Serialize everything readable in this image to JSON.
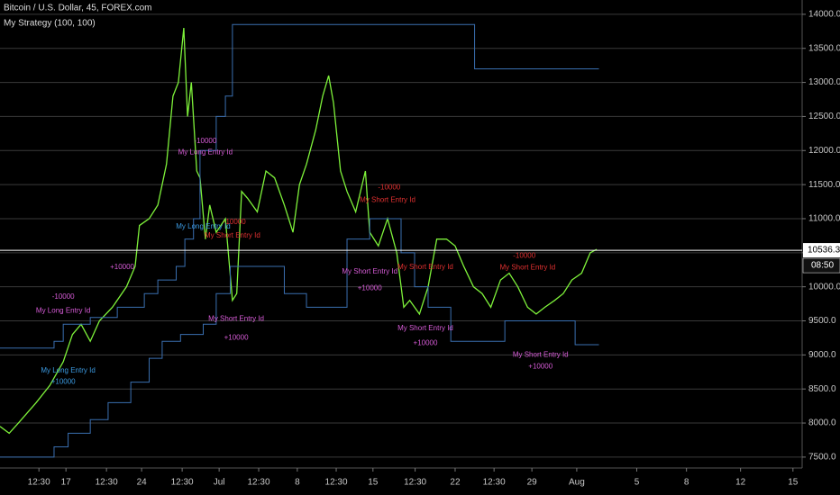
{
  "chart_data": {
    "type": "line",
    "title": "Bitcoin / U.S. Dollar, 45, FOREX.com",
    "subtitle": "My Strategy (100, 100)",
    "xlim": [
      10.9,
      85.1
    ],
    "xticks": [
      {
        "value": 14.5,
        "label": "12:30"
      },
      {
        "value": 17,
        "label": "17"
      },
      {
        "value": 20.75,
        "label": "12:30"
      },
      {
        "value": 24,
        "label": "24"
      },
      {
        "value": 27.75,
        "label": "12:30"
      },
      {
        "value": 31.17,
        "label": "Jul"
      },
      {
        "value": 34.83,
        "label": "12:30"
      },
      {
        "value": 38.4,
        "label": "8"
      },
      {
        "value": 42,
        "label": "12:30"
      },
      {
        "value": 45.4,
        "label": "15"
      },
      {
        "value": 49.3,
        "label": "12:30"
      },
      {
        "value": 53,
        "label": "22"
      },
      {
        "value": 56.6,
        "label": "12:30"
      },
      {
        "value": 60.1,
        "label": "29"
      },
      {
        "value": 64.25,
        "label": "Aug"
      },
      {
        "value": 69.8,
        "label": "5"
      },
      {
        "value": 74.4,
        "label": "8"
      },
      {
        "value": 79.4,
        "label": "12"
      },
      {
        "value": 84.25,
        "label": "15"
      }
    ],
    "ylim": [
      7340,
      14210
    ],
    "yticks": [
      {
        "value": 7500,
        "label": "7500.0"
      },
      {
        "value": 8000,
        "label": "8000.0"
      },
      {
        "value": 8500,
        "label": "8500.0"
      },
      {
        "value": 9000,
        "label": "9000.0"
      },
      {
        "value": 9500,
        "label": "9500.0"
      },
      {
        "value": 10000,
        "label": "10000.0"
      },
      {
        "value": 10500,
        "label": "10500.0"
      },
      {
        "value": 11000,
        "label": "11000.0"
      },
      {
        "value": 11500,
        "label": "11500.0"
      },
      {
        "value": 12000,
        "label": "12000.0"
      },
      {
        "value": 12500,
        "label": "12500.0"
      },
      {
        "value": 13000,
        "label": "13000.0"
      },
      {
        "value": 13500,
        "label": "13500.0"
      },
      {
        "value": 14000,
        "label": "14000.0"
      }
    ],
    "grid": true,
    "series": [
      {
        "color": "#7ef23a",
        "x": [
          10.9,
          11.75,
          12.6,
          14.25,
          15.5,
          16.75,
          17.6,
          18.4,
          19.25,
          20.1,
          21.3,
          22.6,
          23.4,
          23.8,
          24.7,
          25.5,
          26.3,
          26.9,
          27.4,
          27.9,
          28.25,
          28.6,
          29.1,
          29.4,
          29.9,
          30.3,
          30.9,
          31.75,
          32.4,
          32.8,
          33.25,
          33.8,
          34.7,
          35.5,
          36.3,
          37.2,
          38,
          38.6,
          39.25,
          40.1,
          40.75,
          41.3,
          41.75,
          42.4,
          43,
          43.8,
          44.7,
          45.1,
          45.9,
          46.75,
          47.6,
          48.25,
          48.8,
          49.7,
          50.5,
          51.3,
          52.2,
          53,
          53.8,
          54.7,
          55.5,
          56.3,
          57.2,
          58,
          58.8,
          59.7,
          60.5,
          61.3,
          62.2,
          63,
          63.8,
          64.7,
          65.5,
          66.1
        ],
        "values": [
          7950,
          7850,
          8000,
          8300,
          8550,
          8900,
          9300,
          9450,
          9200,
          9500,
          9700,
          10000,
          10300,
          10900,
          11000,
          11200,
          11800,
          12800,
          13000,
          13800,
          12500,
          13000,
          11700,
          11600,
          10700,
          11200,
          10800,
          11000,
          9800,
          9900,
          11400,
          11300,
          11100,
          11700,
          11600,
          11200,
          10800,
          11500,
          11800,
          12300,
          12800,
          13100,
          12700,
          11700,
          11400,
          11100,
          11700,
          10800,
          10600,
          11000,
          10500,
          9700,
          9800,
          9600,
          10000,
          10700,
          10700,
          10600,
          10300,
          10000,
          9900,
          9700,
          10100,
          10200,
          10000,
          9700,
          9600,
          9700,
          9800,
          9900,
          10100,
          10200,
          10500,
          10550
        ]
      },
      {
        "color": "#3a6fb0",
        "step": true,
        "x": [
          10.9,
          15.9,
          16.75,
          19.25,
          21.75,
          24.25,
          25.5,
          27.2,
          28,
          28.8,
          29.4,
          30.9,
          31.75,
          32.4,
          54.8,
          66.3
        ],
        "values": [
          9100,
          9200,
          9450,
          9550,
          9700,
          9900,
          10100,
          10300,
          10700,
          11000,
          12000,
          12500,
          12800,
          13850,
          13200,
          13200
        ]
      },
      {
        "color": "#3a6fb0",
        "step": true,
        "x": [
          10.9,
          15.9,
          17.2,
          19.25,
          20.9,
          23,
          24.7,
          25.9,
          27.6,
          29.7,
          30.9,
          32.2,
          37.2,
          39.25,
          43,
          45.1,
          48,
          49.25,
          50.5,
          52.6,
          57.6,
          64.1,
          66.3
        ],
        "values": [
          7500,
          7650,
          7850,
          8050,
          8300,
          8600,
          8950,
          9200,
          9300,
          9450,
          9900,
          10300,
          9900,
          9700,
          10700,
          11000,
          10500,
          10000,
          9700,
          9200,
          9500,
          9150,
          9150
        ]
      }
    ],
    "annotations": [
      {
        "text": "-10000",
        "x": 16.75,
        "y": 9850,
        "color": "#d65bd6"
      },
      {
        "text": "My Long Entry Id",
        "x": 16.75,
        "y": 9650,
        "color": "#d65bd6"
      },
      {
        "text": "+10000",
        "x": 22.2,
        "y": 10290,
        "color": "#d65bd6"
      },
      {
        "text": "My Long Entry Id",
        "x": 17.2,
        "y": 8770,
        "color": "#3b9ae1"
      },
      {
        "text": "+10000",
        "x": 16.75,
        "y": 8600,
        "color": "#3b9ae1"
      },
      {
        "text": "-10000",
        "x": 29.9,
        "y": 12140,
        "color": "#d65bd6"
      },
      {
        "text": "My Long Entry Id",
        "x": 29.9,
        "y": 11970,
        "color": "#d65bd6"
      },
      {
        "text": "My Long Entry Id",
        "x": 29.7,
        "y": 10880,
        "color": "#3b9ae1"
      },
      {
        "text": "-10000",
        "x": 32.6,
        "y": 10950,
        "color": "#e03030"
      },
      {
        "text": "My Short Entry Id",
        "x": 32.4,
        "y": 10750,
        "color": "#e03030"
      },
      {
        "text": "My Short Entry Id",
        "x": 32.75,
        "y": 9530,
        "color": "#d65bd6"
      },
      {
        "text": "+10000",
        "x": 32.75,
        "y": 9250,
        "color": "#d65bd6"
      },
      {
        "text": "-10000",
        "x": 46.9,
        "y": 11460,
        "color": "#e03030"
      },
      {
        "text": "My Short Entry Id",
        "x": 46.75,
        "y": 11270,
        "color": "#e03030"
      },
      {
        "text": "My Short Entry Id",
        "x": 45.1,
        "y": 10220,
        "color": "#d65bd6"
      },
      {
        "text": "+10000",
        "x": 45.1,
        "y": 9980,
        "color": "#d65bd6"
      },
      {
        "text": "My Short Entry Id",
        "x": 50.25,
        "y": 10290,
        "color": "#e03030"
      },
      {
        "text": "My Short Entry Id",
        "x": 50.25,
        "y": 9390,
        "color": "#d65bd6"
      },
      {
        "text": "+10000",
        "x": 50.25,
        "y": 9170,
        "color": "#d65bd6"
      },
      {
        "text": "-10000",
        "x": 59.4,
        "y": 10450,
        "color": "#e03030"
      },
      {
        "text": "My Short Entry Id",
        "x": 59.7,
        "y": 10280,
        "color": "#e03030"
      },
      {
        "text": "My Short Entry Id",
        "x": 60.9,
        "y": 9000,
        "color": "#d65bd6"
      },
      {
        "text": "+10000",
        "x": 60.9,
        "y": 8830,
        "color": "#d65bd6"
      }
    ],
    "last_price": {
      "value": 10536.3,
      "label": "10536.3"
    },
    "countdown": "08:50"
  }
}
